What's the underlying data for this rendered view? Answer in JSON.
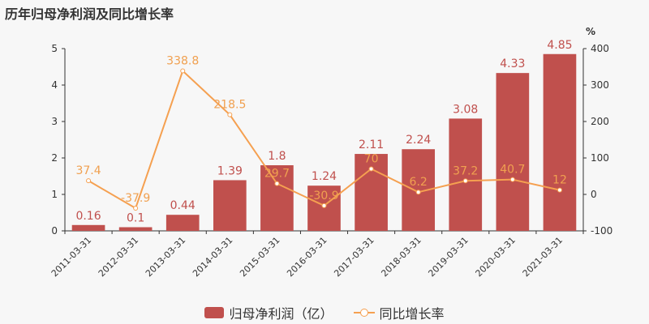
{
  "title": "历年归母净利润及同比增长率",
  "colors": {
    "bar": "#c0504d",
    "line": "#f5a050",
    "axis": "#333333"
  },
  "chart_data": {
    "type": "bar",
    "title": "历年归母净利润及同比增长率",
    "categories": [
      "2011-03-31",
      "2012-03-31",
      "2013-03-31",
      "2014-03-31",
      "2015-03-31",
      "2016-03-31",
      "2017-03-31",
      "2018-03-31",
      "2019-03-31",
      "2020-03-31",
      "2021-03-31"
    ],
    "series": [
      {
        "name": "归母净利润（亿）",
        "type": "bar",
        "axis": "left",
        "values": [
          0.16,
          0.1,
          0.44,
          1.39,
          1.8,
          1.24,
          2.11,
          2.24,
          3.08,
          4.33,
          4.85
        ]
      },
      {
        "name": "同比增长率",
        "type": "line",
        "axis": "right",
        "values": [
          37.4,
          -37.9,
          338.8,
          218.5,
          29.7,
          -30.9,
          70,
          6.2,
          37.2,
          40.7,
          12
        ]
      }
    ],
    "ylim_left": [
      0,
      5
    ],
    "yticks_left": [
      0,
      1,
      2,
      3,
      4,
      5
    ],
    "ylim_right": [
      -100,
      400
    ],
    "yticks_right": [
      -100,
      0,
      100,
      200,
      300,
      400
    ],
    "right_unit": "%",
    "legend_position": "bottom"
  }
}
